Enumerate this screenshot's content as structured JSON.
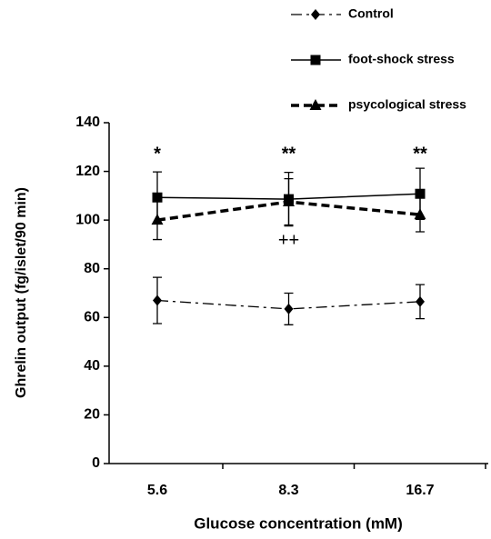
{
  "chart_data": {
    "type": "line",
    "x_label": "Glucose concentration (mM)",
    "y_label": "Ghrelin output (fg/islet/90 min)",
    "categories": [
      "5.6",
      "8.3",
      "16.7"
    ],
    "ylim": [
      0,
      140
    ],
    "yticks": [
      0,
      20,
      40,
      60,
      80,
      100,
      120,
      140
    ],
    "series": [
      {
        "name": "Control",
        "color": "#000000",
        "line_style": "dashdot",
        "marker": "diamond",
        "values": [
          67,
          63.5,
          66.5
        ],
        "errors": [
          9.5,
          6.5,
          7
        ]
      },
      {
        "name": "foot-shock stress",
        "color": "#000000",
        "line_style": "solid",
        "marker": "square",
        "values": [
          109.3,
          108.6,
          110.8
        ],
        "errors": [
          10.5,
          11,
          10.5
        ]
      },
      {
        "name": "psycological stress",
        "color": "#000000",
        "line_style": "dashed",
        "marker": "triangle",
        "values": [
          100,
          107.5,
          102.2
        ],
        "errors": [
          8,
          9.5,
          7
        ]
      }
    ],
    "annotations": [
      "*",
      "**",
      "**",
      "++"
    ]
  }
}
